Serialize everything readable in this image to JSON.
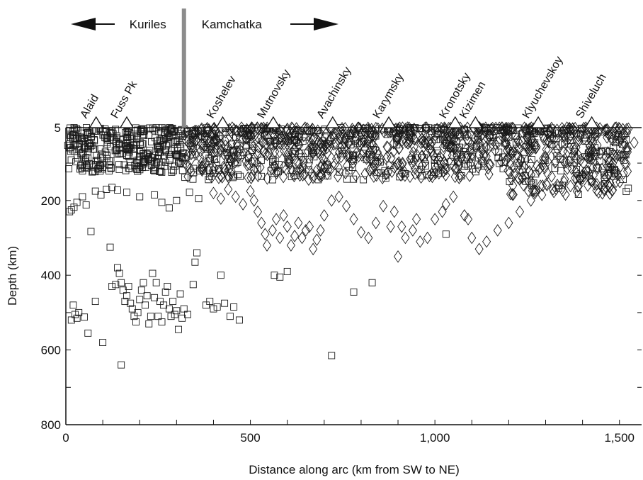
{
  "chart_data": {
    "type": "scatter",
    "title": "",
    "xlabel": "Distance along arc (km from SW to NE)",
    "ylabel": "Depth (km)",
    "xlim": [
      0,
      1560
    ],
    "ylim": [
      800,
      5
    ],
    "y_inverted": true,
    "x_ticks": [
      {
        "value": 0,
        "label": "0"
      },
      {
        "value": 500,
        "label": "500"
      },
      {
        "value": 1000,
        "label": "1,000"
      },
      {
        "value": 1500,
        "label": "1,500"
      }
    ],
    "y_ticks": [
      {
        "value": 5,
        "label": "5"
      },
      {
        "value": 200,
        "label": "200"
      },
      {
        "value": 400,
        "label": "400"
      },
      {
        "value": 600,
        "label": "600"
      },
      {
        "value": 800,
        "label": "800"
      }
    ],
    "grid": false,
    "regions": {
      "boundary_x": 320,
      "left": {
        "label": "Kuriles",
        "arrow": "left"
      },
      "right": {
        "label": "Kamchatka",
        "arrow": "right"
      }
    },
    "volcanoes": [
      {
        "name": "Alaid",
        "x": 82
      },
      {
        "name": "Fuss Pk",
        "x": 165
      },
      {
        "name": "Koshelev",
        "x": 425
      },
      {
        "name": "Mutnovsky",
        "x": 562
      },
      {
        "name": "Avachinsky",
        "x": 723
      },
      {
        "name": "Karymsky",
        "x": 875
      },
      {
        "name": "Kronotsky",
        "x": 1055
      },
      {
        "name": "Kizimen",
        "x": 1110
      },
      {
        "name": "Klyuchevskoy",
        "x": 1280
      },
      {
        "name": "Shiveluch",
        "x": 1425
      }
    ],
    "series": [
      {
        "marker": "square",
        "points": [
          [
            10,
            230
          ],
          [
            15,
            225
          ],
          [
            22,
            218
          ],
          [
            30,
            205
          ],
          [
            45,
            190
          ],
          [
            55,
            212
          ],
          [
            68,
            283
          ],
          [
            80,
            175
          ],
          [
            95,
            185
          ],
          [
            110,
            170
          ],
          [
            125,
            165
          ],
          [
            140,
            172
          ],
          [
            165,
            178
          ],
          [
            200,
            190
          ],
          [
            240,
            185
          ],
          [
            260,
            205
          ],
          [
            280,
            220
          ],
          [
            300,
            200
          ],
          [
            335,
            178
          ],
          [
            360,
            195
          ],
          [
            20,
            480
          ],
          [
            25,
            505
          ],
          [
            30,
            515
          ],
          [
            15,
            520
          ],
          [
            35,
            500
          ],
          [
            50,
            512
          ],
          [
            60,
            555
          ],
          [
            80,
            470
          ],
          [
            100,
            580
          ],
          [
            120,
            325
          ],
          [
            125,
            430
          ],
          [
            135,
            425
          ],
          [
            140,
            380
          ],
          [
            145,
            395
          ],
          [
            150,
            420
          ],
          [
            155,
            440
          ],
          [
            160,
            470
          ],
          [
            165,
            455
          ],
          [
            170,
            430
          ],
          [
            175,
            475
          ],
          [
            180,
            490
          ],
          [
            185,
            510
          ],
          [
            190,
            525
          ],
          [
            195,
            500
          ],
          [
            200,
            465
          ],
          [
            205,
            440
          ],
          [
            210,
            420
          ],
          [
            215,
            480
          ],
          [
            220,
            455
          ],
          [
            225,
            530
          ],
          [
            230,
            510
          ],
          [
            235,
            395
          ],
          [
            240,
            460
          ],
          [
            245,
            420
          ],
          [
            250,
            510
          ],
          [
            255,
            470
          ],
          [
            260,
            525
          ],
          [
            265,
            480
          ],
          [
            270,
            445
          ],
          [
            275,
            430
          ],
          [
            280,
            490
          ],
          [
            285,
            510
          ],
          [
            290,
            470
          ],
          [
            295,
            505
          ],
          [
            300,
            495
          ],
          [
            305,
            545
          ],
          [
            310,
            450
          ],
          [
            315,
            515
          ],
          [
            320,
            490
          ],
          [
            330,
            505
          ],
          [
            345,
            425
          ],
          [
            350,
            365
          ],
          [
            355,
            340
          ],
          [
            150,
            640
          ],
          [
            420,
            400
          ],
          [
            380,
            480
          ],
          [
            390,
            470
          ],
          [
            400,
            490
          ],
          [
            410,
            485
          ],
          [
            430,
            475
          ],
          [
            445,
            510
          ],
          [
            455,
            485
          ],
          [
            470,
            520
          ],
          [
            565,
            400
          ],
          [
            580,
            405
          ],
          [
            600,
            390
          ],
          [
            720,
            615
          ],
          [
            780,
            445
          ],
          [
            830,
            420
          ],
          [
            1030,
            290
          ],
          [
            1340,
            90
          ],
          [
            1410,
            120
          ],
          [
            1460,
            155
          ],
          [
            1425,
            150
          ]
        ]
      },
      {
        "marker": "diamond",
        "points": [
          [
            400,
            180
          ],
          [
            420,
            195
          ],
          [
            440,
            170
          ],
          [
            460,
            190
          ],
          [
            480,
            210
          ],
          [
            500,
            175
          ],
          [
            510,
            200
          ],
          [
            520,
            230
          ],
          [
            530,
            260
          ],
          [
            540,
            290
          ],
          [
            545,
            320
          ],
          [
            560,
            280
          ],
          [
            570,
            250
          ],
          [
            580,
            300
          ],
          [
            590,
            240
          ],
          [
            600,
            270
          ],
          [
            610,
            320
          ],
          [
            620,
            295
          ],
          [
            630,
            260
          ],
          [
            640,
            300
          ],
          [
            650,
            280
          ],
          [
            660,
            270
          ],
          [
            670,
            330
          ],
          [
            680,
            305
          ],
          [
            690,
            280
          ],
          [
            700,
            240
          ],
          [
            720,
            200
          ],
          [
            740,
            190
          ],
          [
            760,
            215
          ],
          [
            780,
            250
          ],
          [
            800,
            285
          ],
          [
            820,
            300
          ],
          [
            840,
            260
          ],
          [
            860,
            215
          ],
          [
            880,
            270
          ],
          [
            890,
            230
          ],
          [
            900,
            350
          ],
          [
            910,
            270
          ],
          [
            920,
            300
          ],
          [
            940,
            280
          ],
          [
            950,
            250
          ],
          [
            960,
            310
          ],
          [
            980,
            300
          ],
          [
            1000,
            250
          ],
          [
            1020,
            230
          ],
          [
            1030,
            210
          ],
          [
            1050,
            190
          ],
          [
            1080,
            240
          ],
          [
            1090,
            250
          ],
          [
            1100,
            300
          ],
          [
            1120,
            330
          ],
          [
            1140,
            310
          ],
          [
            1170,
            280
          ],
          [
            1200,
            260
          ],
          [
            1230,
            230
          ],
          [
            1260,
            200
          ],
          [
            1290,
            185
          ],
          [
            1320,
            170
          ],
          [
            1350,
            150
          ],
          [
            1380,
            140
          ],
          [
            1410,
            120
          ],
          [
            1440,
            110
          ],
          [
            1470,
            90
          ],
          [
            1500,
            80
          ],
          [
            1520,
            60
          ],
          [
            1540,
            45
          ]
        ]
      }
    ]
  }
}
